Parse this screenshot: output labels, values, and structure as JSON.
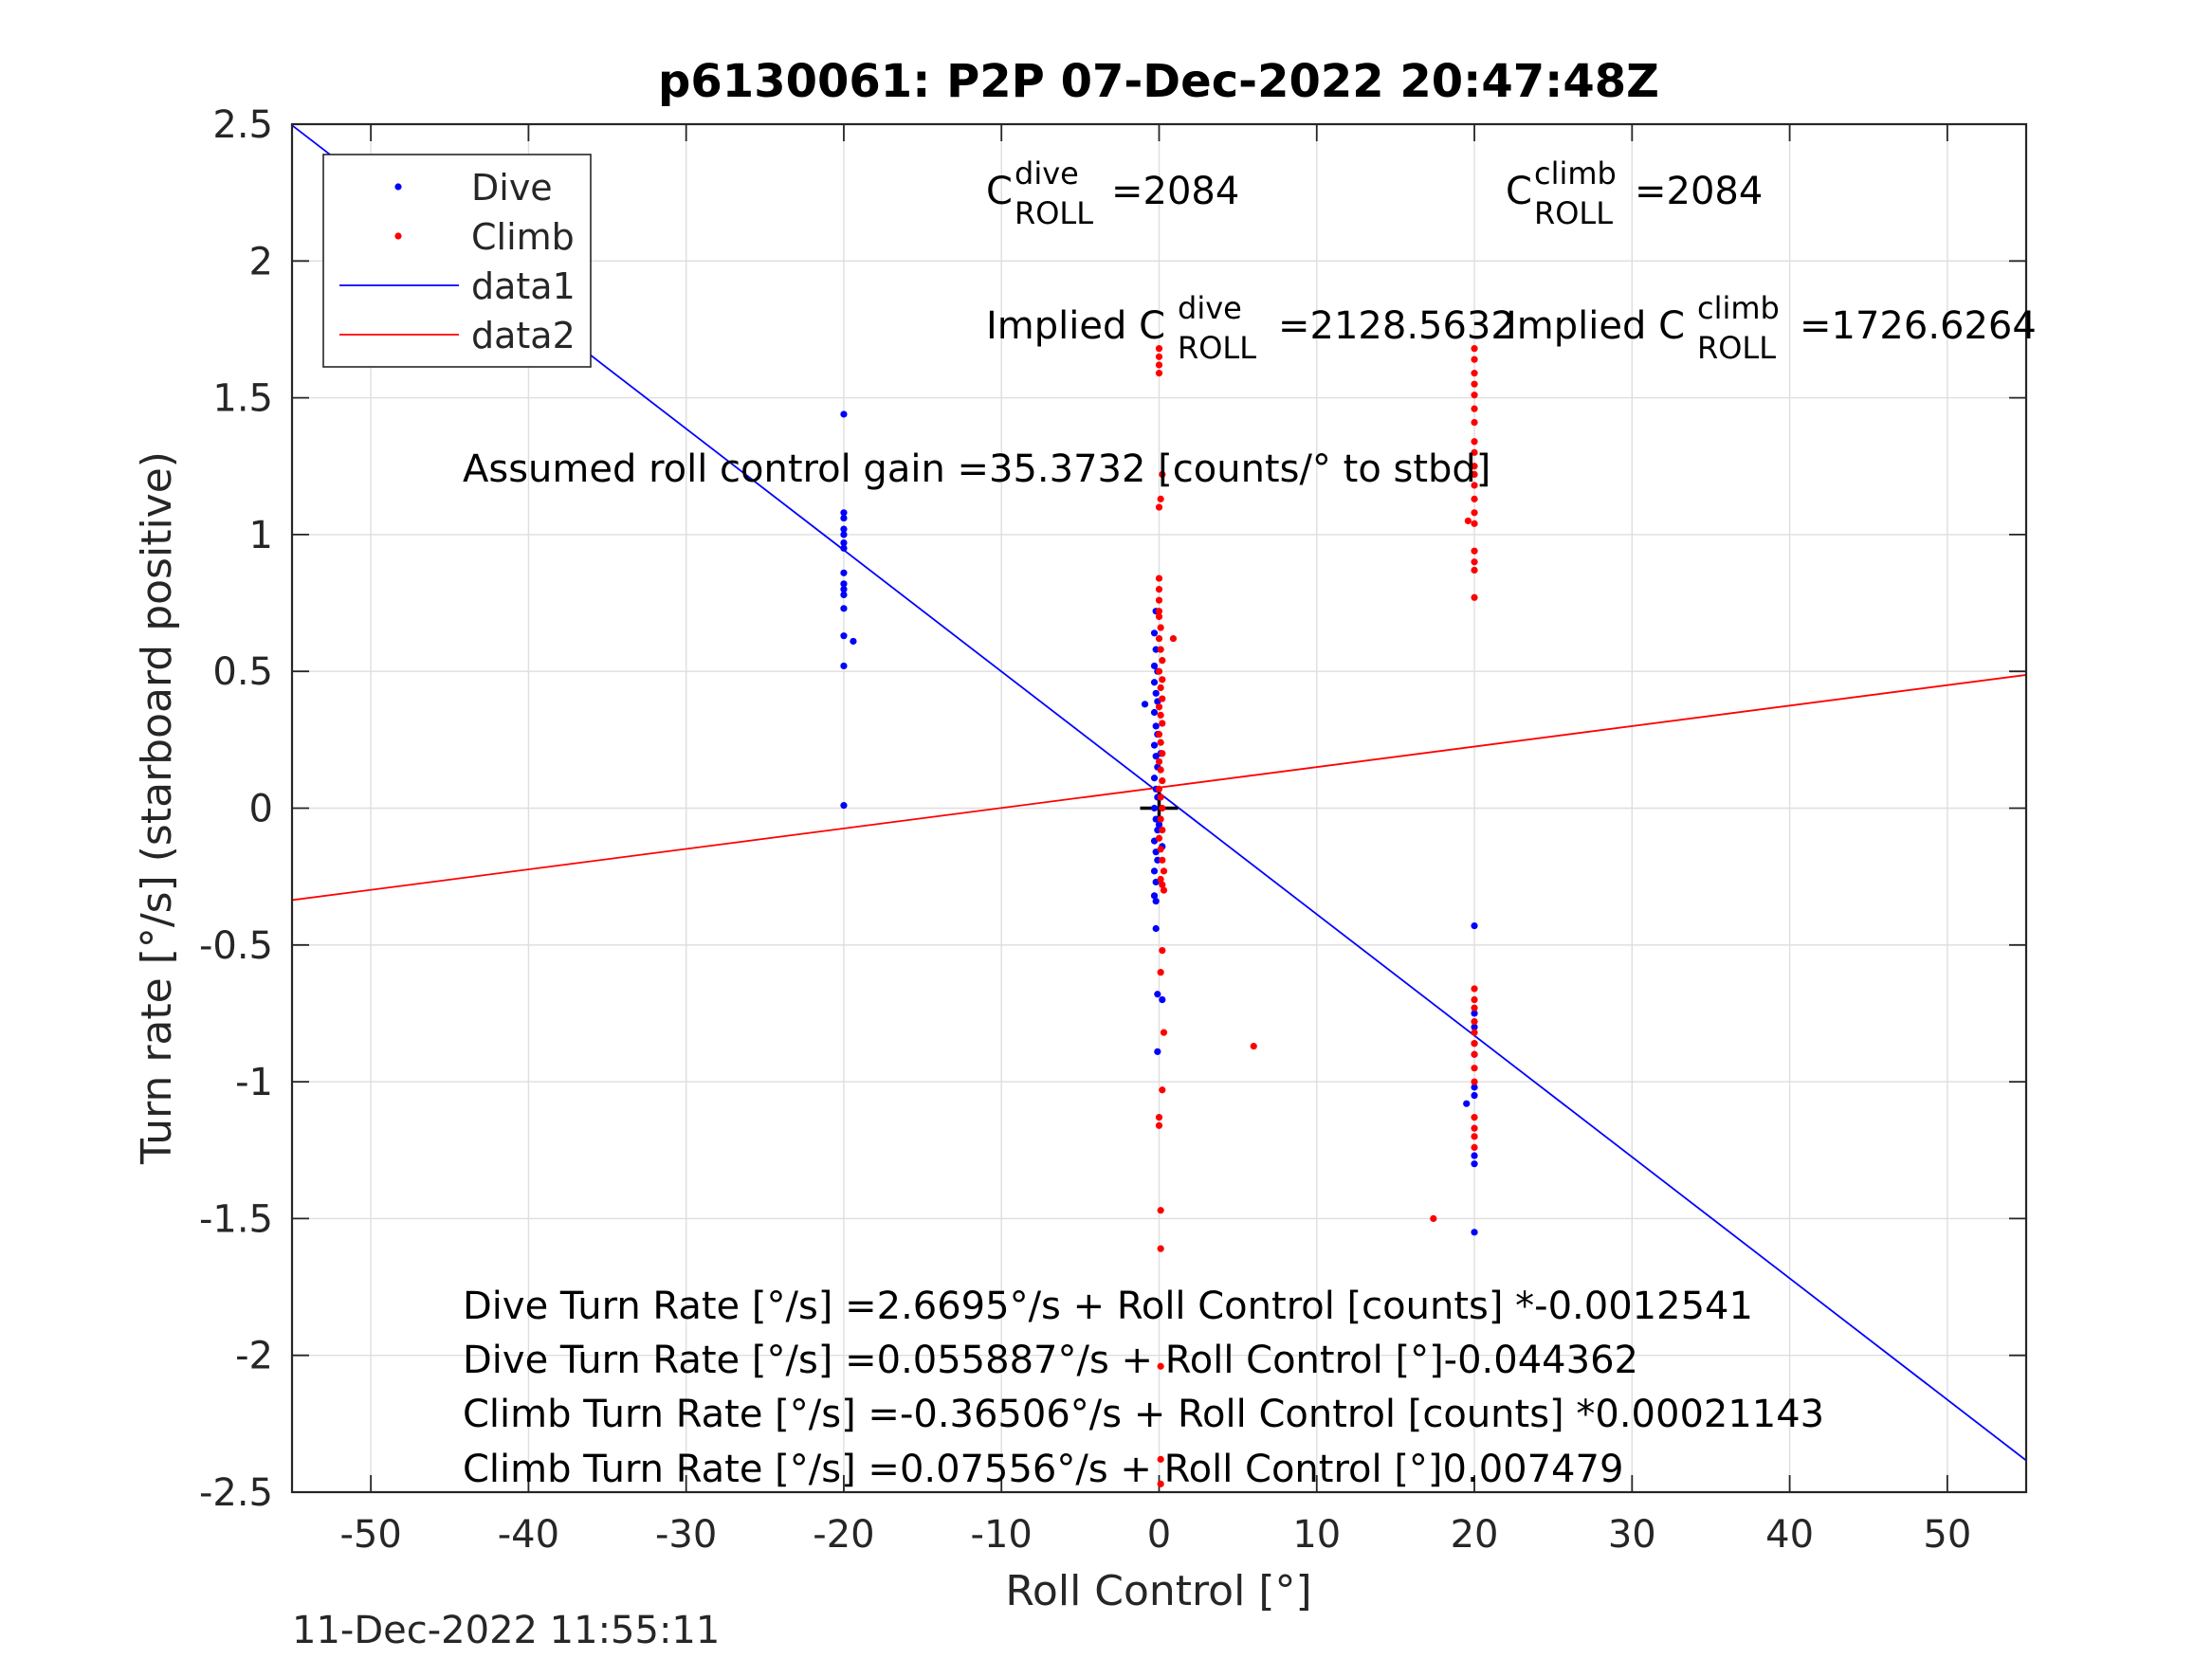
{
  "chart_data": {
    "type": "scatter",
    "title": "p6130061: P2P 07-Dec-2022 20:47:48Z",
    "xlabel": "Roll Control [°]",
    "ylabel": "Turn rate [°/s] (starboard positive)",
    "xlim": [
      -55,
      55
    ],
    "ylim": [
      -2.5,
      2.5
    ],
    "x_ticks": [
      -50,
      -40,
      -30,
      -20,
      -10,
      0,
      10,
      20,
      30,
      40,
      50
    ],
    "y_ticks": [
      -2.5,
      -2,
      -1.5,
      -1,
      -0.5,
      0,
      0.5,
      1,
      1.5,
      2,
      2.5
    ],
    "x_tick_labels": [
      "-50",
      "-40",
      "-30",
      "-20",
      "-10",
      "0",
      "10",
      "20",
      "30",
      "40",
      "50"
    ],
    "y_tick_labels": [
      "-2.5",
      "-2",
      "-1.5",
      "-1",
      "-0.5",
      "0",
      "0.5",
      "1",
      "1.5",
      "2",
      "2.5"
    ],
    "grid": true,
    "legend_position": "top-left",
    "legend": [
      "Dive",
      "Climb",
      "data1",
      "data2"
    ],
    "colors": {
      "dive": "#0000ff",
      "climb": "#ff0000",
      "marker": "#000000"
    },
    "origin_marker": [
      0,
      0
    ],
    "series": [
      {
        "name": "Dive",
        "kind": "points",
        "color": "#0000ff",
        "points": [
          [
            -20,
            1.44
          ],
          [
            -20,
            1.08
          ],
          [
            -20,
            1.06
          ],
          [
            -20,
            1.02
          ],
          [
            -20,
            1.0
          ],
          [
            -20,
            0.97
          ],
          [
            -20,
            0.95
          ],
          [
            -20,
            0.86
          ],
          [
            -20,
            0.82
          ],
          [
            -20,
            0.8
          ],
          [
            -20,
            0.78
          ],
          [
            -20,
            0.73
          ],
          [
            -20,
            0.63
          ],
          [
            -20,
            0.52
          ],
          [
            -20,
            0.01
          ],
          [
            -19.4,
            0.61
          ],
          [
            -0.3,
            0.64
          ],
          [
            -0.2,
            0.58
          ],
          [
            -0.3,
            0.52
          ],
          [
            -0.1,
            0.5
          ],
          [
            -0.3,
            0.46
          ],
          [
            -0.2,
            0.42
          ],
          [
            -0.1,
            0.39
          ],
          [
            -0.3,
            0.35
          ],
          [
            -0.2,
            0.3
          ],
          [
            -0.1,
            0.27
          ],
          [
            -0.3,
            0.23
          ],
          [
            -0.2,
            0.19
          ],
          [
            -0.1,
            0.15
          ],
          [
            -0.3,
            0.11
          ],
          [
            -0.2,
            0.07
          ],
          [
            -0.1,
            0.04
          ],
          [
            -0.3,
            0.0
          ],
          [
            -0.2,
            -0.04
          ],
          [
            -0.1,
            -0.08
          ],
          [
            -0.3,
            -0.12
          ],
          [
            -0.2,
            -0.16
          ],
          [
            -0.1,
            -0.19
          ],
          [
            -0.3,
            -0.23
          ],
          [
            -0.2,
            -0.27
          ],
          [
            -0.3,
            -0.32
          ],
          [
            -0.2,
            -0.34
          ],
          [
            -0.9,
            0.38
          ],
          [
            0.1,
            0.2
          ],
          [
            0.0,
            -0.06
          ],
          [
            0.2,
            -0.14
          ],
          [
            -0.2,
            0.72
          ],
          [
            -0.2,
            -0.44
          ],
          [
            -0.1,
            -0.68
          ],
          [
            0.2,
            -0.7
          ],
          [
            -0.1,
            -0.89
          ],
          [
            20,
            -0.43
          ],
          [
            20,
            -0.75
          ],
          [
            20,
            -0.8
          ],
          [
            20,
            -0.86
          ],
          [
            20,
            -0.9
          ],
          [
            20,
            -1.02
          ],
          [
            20,
            -1.05
          ],
          [
            20,
            -1.27
          ],
          [
            20,
            -1.3
          ],
          [
            20,
            -1.55
          ],
          [
            19.5,
            -1.08
          ]
        ]
      },
      {
        "name": "Climb",
        "kind": "points",
        "color": "#ff0000",
        "points": [
          [
            0,
            1.68
          ],
          [
            0,
            1.65
          ],
          [
            0,
            1.62
          ],
          [
            0,
            1.59
          ],
          [
            0.2,
            1.22
          ],
          [
            0.1,
            1.13
          ],
          [
            0,
            1.1
          ],
          [
            0,
            0.84
          ],
          [
            0,
            0.8
          ],
          [
            0,
            0.76
          ],
          [
            0,
            0.72
          ],
          [
            0,
            0.7
          ],
          [
            0.1,
            0.66
          ],
          [
            0,
            0.62
          ],
          [
            0.9,
            0.62
          ],
          [
            0.1,
            0.58
          ],
          [
            0.2,
            0.54
          ],
          [
            0.0,
            0.5
          ],
          [
            0.2,
            0.47
          ],
          [
            0.1,
            0.44
          ],
          [
            0.2,
            0.4
          ],
          [
            0.0,
            0.37
          ],
          [
            0.1,
            0.34
          ],
          [
            0.2,
            0.31
          ],
          [
            0.0,
            0.27
          ],
          [
            0.1,
            0.24
          ],
          [
            0.2,
            0.2
          ],
          [
            0.0,
            0.17
          ],
          [
            0.1,
            0.14
          ],
          [
            0.2,
            0.1
          ],
          [
            0.0,
            0.07
          ],
          [
            0.1,
            0.04
          ],
          [
            0.2,
            0.0
          ],
          [
            0.1,
            -0.04
          ],
          [
            0.2,
            -0.08
          ],
          [
            0.0,
            -0.11
          ],
          [
            0.1,
            -0.15
          ],
          [
            0.2,
            -0.19
          ],
          [
            0.3,
            -0.23
          ],
          [
            0.1,
            -0.26
          ],
          [
            0.2,
            -0.28
          ],
          [
            0.3,
            -0.3
          ],
          [
            0.2,
            -0.52
          ],
          [
            0.1,
            -0.6
          ],
          [
            0.3,
            -0.82
          ],
          [
            0.2,
            -1.03
          ],
          [
            0,
            -1.13
          ],
          [
            0,
            -1.16
          ],
          [
            0.1,
            -1.47
          ],
          [
            0.1,
            -1.61
          ],
          [
            0.1,
            -2.04
          ],
          [
            0.1,
            -2.38
          ],
          [
            0.1,
            -2.47
          ],
          [
            6,
            -0.87
          ],
          [
            17.4,
            -1.5
          ],
          [
            20,
            1.68
          ],
          [
            20,
            1.64
          ],
          [
            20,
            1.59
          ],
          [
            20,
            1.55
          ],
          [
            20,
            1.51
          ],
          [
            20,
            1.46
          ],
          [
            20,
            1.41
          ],
          [
            20,
            1.34
          ],
          [
            20,
            1.3
          ],
          [
            20,
            1.25
          ],
          [
            20,
            1.22
          ],
          [
            20,
            1.18
          ],
          [
            20,
            1.13
          ],
          [
            20,
            1.08
          ],
          [
            20,
            1.04
          ],
          [
            19.6,
            1.05
          ],
          [
            20,
            0.94
          ],
          [
            20,
            0.9
          ],
          [
            20,
            0.87
          ],
          [
            20,
            0.77
          ],
          [
            20,
            -0.66
          ],
          [
            20,
            -0.7
          ],
          [
            20,
            -0.73
          ],
          [
            20,
            -0.78
          ],
          [
            20,
            -0.82
          ],
          [
            20,
            -0.86
          ],
          [
            20,
            -0.9
          ],
          [
            20,
            -0.95
          ],
          [
            20,
            -1.0
          ],
          [
            20,
            -1.13
          ],
          [
            20,
            -1.17
          ],
          [
            20,
            -1.2
          ],
          [
            20,
            -1.24
          ]
        ]
      },
      {
        "name": "data1",
        "kind": "line",
        "color": "#0000ff",
        "x": [
          -55,
          55
        ],
        "y": [
          2.496,
          -2.384
        ]
      },
      {
        "name": "data2",
        "kind": "line",
        "color": "#ff0000",
        "x": [
          -55,
          55
        ],
        "y": [
          -0.336,
          0.487
        ]
      }
    ],
    "annotations": {
      "c_dive_base": "C",
      "c_dive_sup": "dive",
      "c_dive_sub": "ROLL",
      "c_dive_value": "=2084",
      "c_climb_base": "C",
      "c_climb_sup": "climb",
      "c_climb_sub": "ROLL",
      "c_climb_value": "=2084",
      "implied_dive_prefix": "Implied C",
      "implied_dive_sup": "dive",
      "implied_dive_sub": "ROLL",
      "implied_dive_value": "=2128.5632",
      "implied_climb_prefix": "Implied C",
      "implied_climb_sup": "climb",
      "implied_climb_sub": "ROLL",
      "implied_climb_value": "=1726.6264",
      "gain": "Assumed roll control gain =35.3732 [counts/° to stbd]",
      "eq1": "Dive Turn Rate [°/s] =2.6695°/s + Roll Control [counts] *-0.0012541",
      "eq2": "Dive Turn Rate [°/s] =0.055887°/s + Roll Control [°]-0.044362",
      "eq3": "Climb Turn Rate [°/s] =-0.36506°/s + Roll Control [counts] *0.00021143",
      "eq4": "Climb Turn Rate [°/s] =0.07556°/s + Roll Control [°]0.007479"
    },
    "footer_timestamp": "11-Dec-2022 11:55:11"
  }
}
